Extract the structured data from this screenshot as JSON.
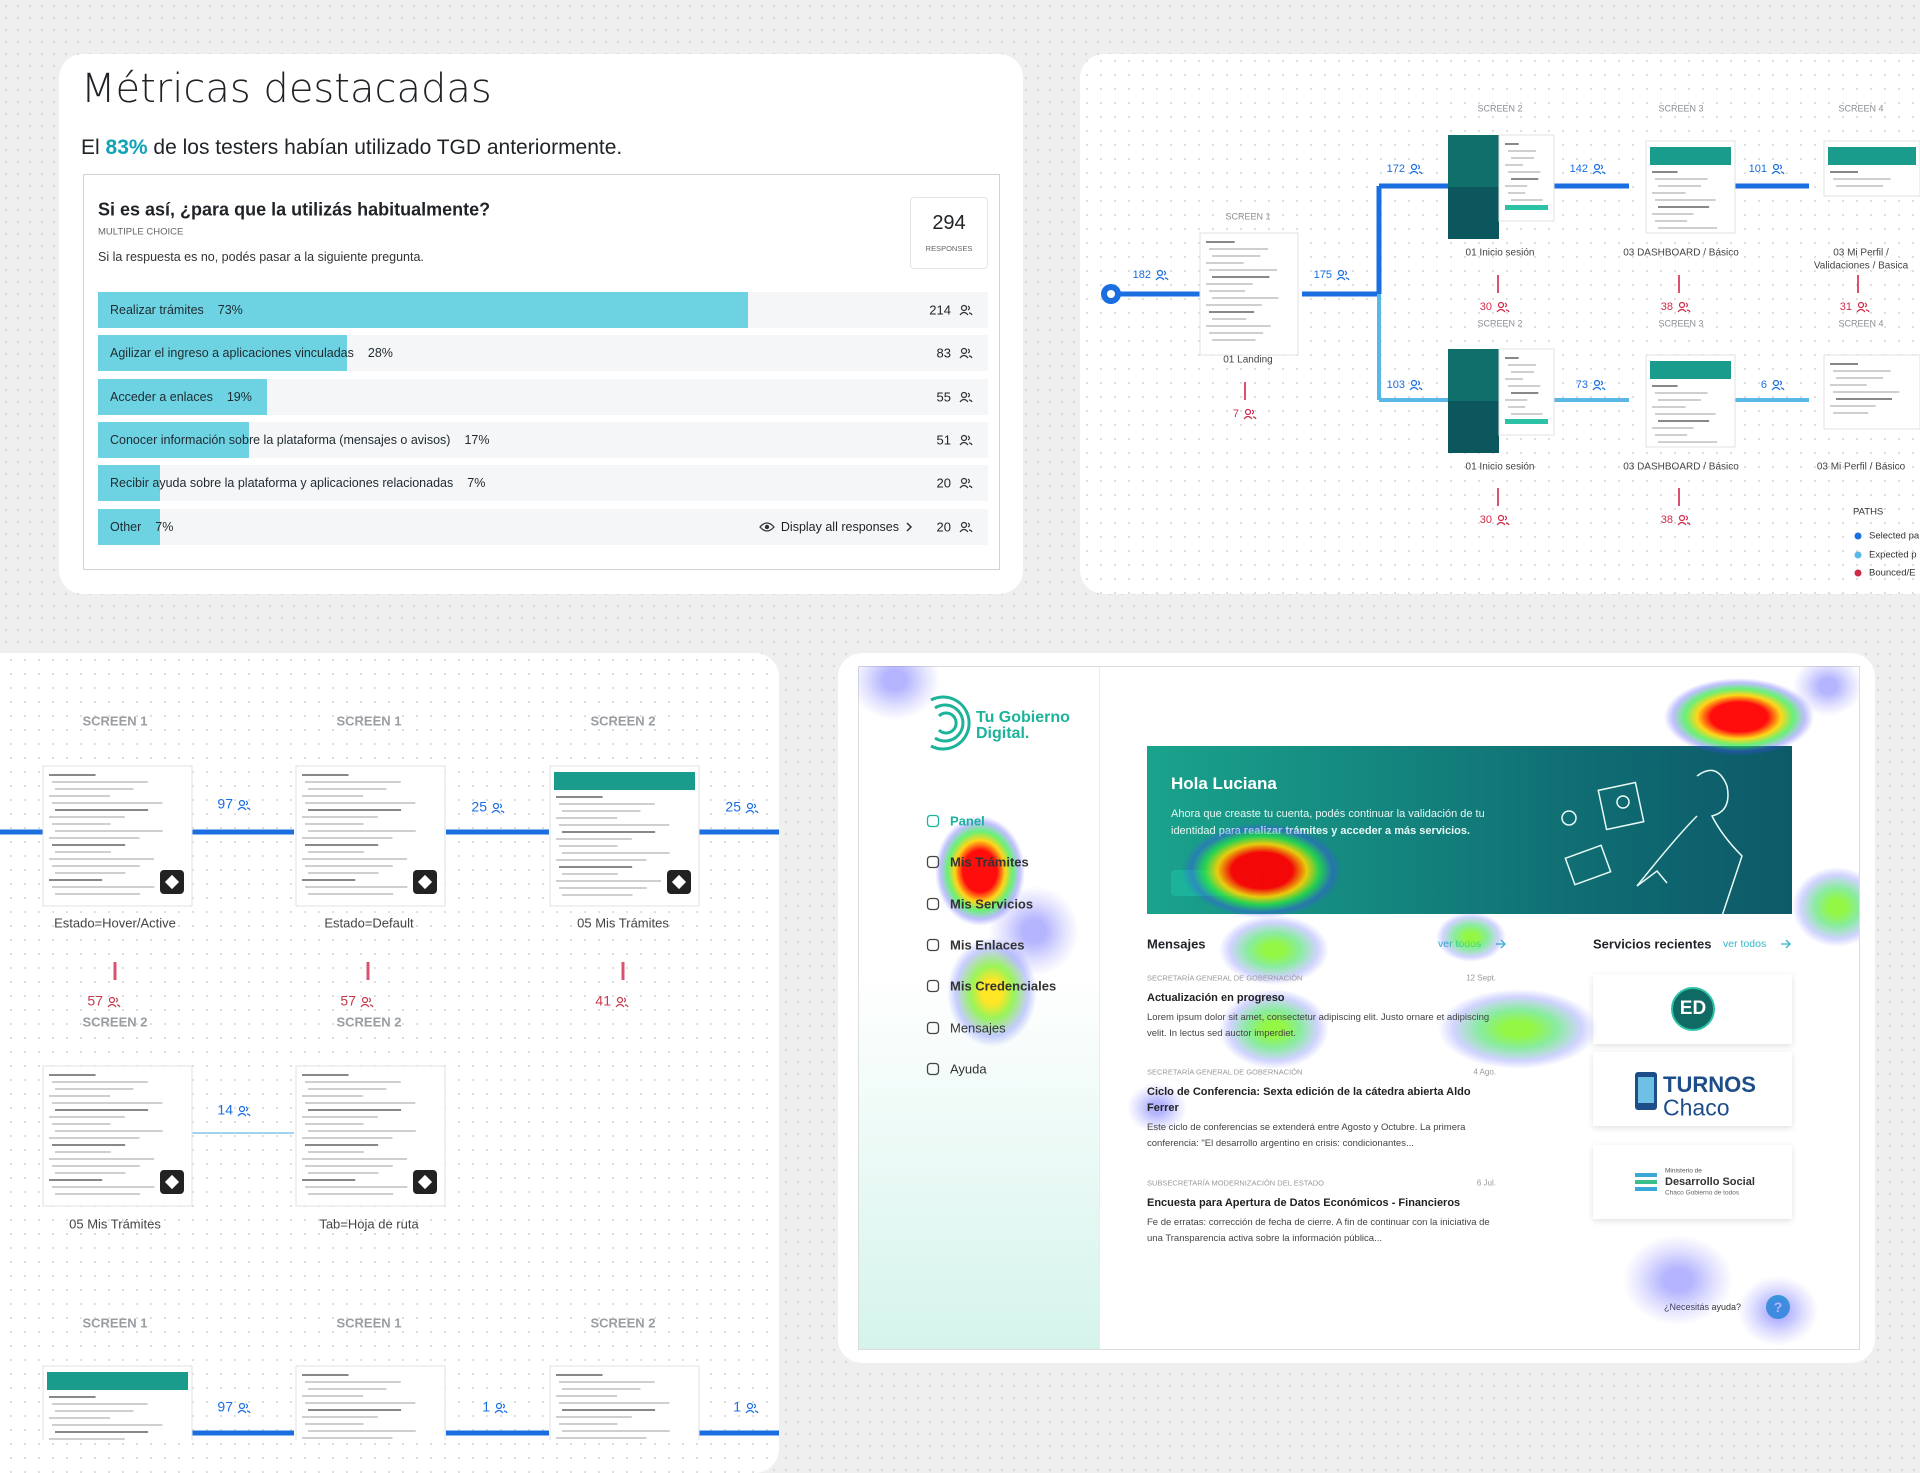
{
  "metrics": {
    "title": "Métricas destacadas",
    "summary": {
      "before": "El",
      "highlight": "83%",
      "after": "de los testers habían utilizado TGD anteriormente."
    },
    "question": {
      "title": "Si es así, ¿para que la utilizás habitualmente?",
      "type": "MULTIPLE CHOICE",
      "hint": "Si la respuesta es no, podés pasar a la siguiente pregunta.",
      "responses": 294,
      "responses_label": "RESPONSES",
      "display_all": "Display all responses",
      "options": [
        {
          "label": "Realizar trámites",
          "percent": 73,
          "percent_label": "73%",
          "count": 214
        },
        {
          "label": "Agilizar el ingreso a aplicaciones vinculadas",
          "percent": 28,
          "percent_label": "28%",
          "count": 83
        },
        {
          "label": "Acceder a enlaces",
          "percent": 19,
          "percent_label": "19%",
          "count": 55
        },
        {
          "label": "Conocer información sobre la plataforma (mensajes o avisos)",
          "percent": 17,
          "percent_label": "17%",
          "count": 51
        },
        {
          "label": "Recibir ayuda sobre la plataforma y aplicaciones relacionadas",
          "percent": 7,
          "percent_label": "7%",
          "count": 20
        },
        {
          "label": "Other",
          "percent": 7,
          "percent_label": "7%",
          "count": 20
        }
      ]
    }
  },
  "user_flow": {
    "headings": [
      "SCREEN 1",
      "SCREEN 2",
      "SCREEN 3",
      "SCREEN 4",
      "SCREEN 2",
      "SCREEN 3",
      "SCREEN 4"
    ],
    "captions": [
      "01 Landing",
      "01 Inicio sesión",
      "03 DASHBOARD / Básico",
      "03 Mi Perfil /",
      "Validaciones / Basica",
      "01 Inicio sesión",
      "03 DASHBOARD / Básico",
      "03 Mi Perfil / Básico"
    ],
    "path_counts": [
      182,
      175,
      172,
      142,
      101,
      103,
      73,
      6
    ],
    "drop_counts": [
      7,
      30,
      38,
      31,
      30,
      38
    ],
    "legend_title": "PATHS",
    "legend": [
      {
        "label": "Selected pa",
        "color": "#1a6ee0"
      },
      {
        "label": "Expected p",
        "color": "#5ab8e8"
      },
      {
        "label": "Bounced/E",
        "color": "#d0294a"
      }
    ]
  },
  "flow_grid": {
    "headings": [
      "SCREEN 1",
      "SCREEN 1",
      "SCREEN 2",
      "SCREEN 2",
      "SCREEN 2",
      "SCREEN 1",
      "SCREEN 1",
      "SCREEN 2"
    ],
    "captions": [
      "Estado=Hover/Active",
      "Estado=Default",
      "05 Mis Trámites",
      "05 Mis Trámites",
      "Tab=Hoja de ruta"
    ],
    "path_counts": [
      97,
      25,
      25,
      14,
      97,
      1,
      1
    ],
    "drop_counts": [
      57,
      57,
      41
    ]
  },
  "heatmap": {
    "brand": [
      "Tu Gobierno",
      "Digital."
    ],
    "nav": [
      "Panel",
      "Mis Trámites",
      "Mis Servicios",
      "Mis Enlaces",
      "Mis Credenciales",
      "Mensajes",
      "Ayuda"
    ],
    "greeting": "Hola Luciana",
    "intro": "Ahora que creaste tu cuenta, podés continuar la validación de tu identidad para",
    "intro_bold": "realizar trámites y acceder a más servicios.",
    "messages_title": "Mensajes",
    "see_all": "ver todos",
    "messages": [
      {
        "category": "SECRETARÍA GENERAL DE GOBERNACIÓN",
        "date": "12 Sept.",
        "title": "Actualización en progreso",
        "body": "Lorem ipsum dolor sit amet, consectetur adipiscing elit. Justo ornare et adipiscing velit. In lectus sed auctor imperdiet."
      },
      {
        "category": "SECRETARÍA GENERAL DE GOBERNACIÓN",
        "date": "4 Ago.",
        "title": "Ciclo de Conferencia: Sexta edición de la cátedra abierta Aldo Ferrer",
        "body": "Este ciclo de conferencias se extenderá entre Agosto y Octubre. La primera conferencia: \"El desarrollo argentino en crisis: condicionantes..."
      },
      {
        "category": "SUBSECRETARÍA MODERNIZACIÓN DEL ESTADO",
        "date": "6 Jul.",
        "title": "Encuesta para Apertura de Datos Económicos - Financieros",
        "body": "Fe de erratas: corrección de fecha de cierre. A fin de continuar con la iniciativa de una Transparencia activa sobre la información pública..."
      }
    ],
    "services_title": "Servicios recientes",
    "services": {
      "ed": "ED",
      "turnos": "TURNOS",
      "chaco": "Chaco",
      "ministry": "Ministerio de",
      "social": "Desarrollo Social",
      "gov": "Chaco Gobierno de todos"
    },
    "help": "¿Necesitás ayuda?",
    "help_icon": "?"
  }
}
